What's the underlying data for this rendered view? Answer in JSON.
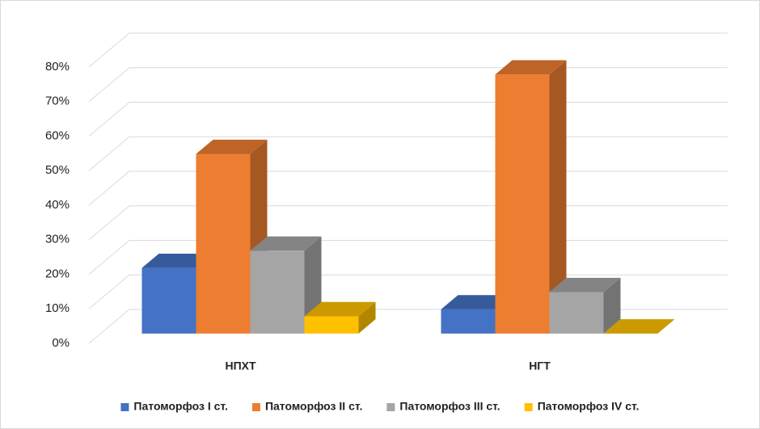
{
  "chart_data": {
    "type": "bar3d",
    "categories": [
      "НПХТ",
      "НГТ"
    ],
    "series": [
      {
        "name": "Патоморфоз I ст.",
        "color": "#4472c4",
        "values": [
          19,
          7
        ]
      },
      {
        "name": "Патоморфоз II ст.",
        "color": "#ed7d31",
        "values": [
          52,
          75
        ]
      },
      {
        "name": "Патоморфоз III ст.",
        "color": "#a5a5a5",
        "values": [
          24,
          12
        ]
      },
      {
        "name": "Патоморфоз IV ст.",
        "color": "#ffc000",
        "values": [
          5,
          0
        ]
      }
    ],
    "ylim": [
      0,
      80
    ],
    "yticks": [
      {
        "value": 0,
        "label": "0%"
      },
      {
        "value": 10,
        "label": "10%"
      },
      {
        "value": 20,
        "label": "20%"
      },
      {
        "value": 30,
        "label": "30%"
      },
      {
        "value": 40,
        "label": "40%"
      },
      {
        "value": 50,
        "label": "50%"
      },
      {
        "value": 60,
        "label": "60%"
      },
      {
        "value": 70,
        "label": "70%"
      },
      {
        "value": 80,
        "label": "80%"
      }
    ],
    "grid": true,
    "legend": "bottom"
  }
}
